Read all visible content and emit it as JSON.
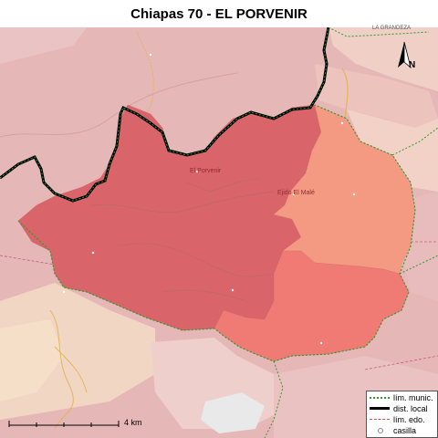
{
  "title": "Chiapas 70 - EL PORVENIR",
  "places": {
    "el_porvenir": "El Porvenir",
    "second": "Ejido El Malé",
    "la_grandeza": "LA GRANDEZA"
  },
  "legend": {
    "items": [
      {
        "label": "lím. munic.",
        "symbol": "dotted-green-line"
      },
      {
        "label": "dist. local",
        "symbol": "thick-black-line"
      },
      {
        "label": "lím. edo.",
        "symbol": "dashed-red-line"
      },
      {
        "label": "casilla",
        "symbol": "small-circle"
      }
    ]
  },
  "scale": {
    "label": "4 km"
  },
  "north_arrow": {
    "letter": "N"
  },
  "colors": {
    "district_dark": "#d9646a",
    "district_mid": "#ef7b74",
    "district_light": "#f49a82",
    "background_pink": "#e8b8b8",
    "boundary_black": "#000000",
    "munic_green": "#2e9b2e"
  }
}
